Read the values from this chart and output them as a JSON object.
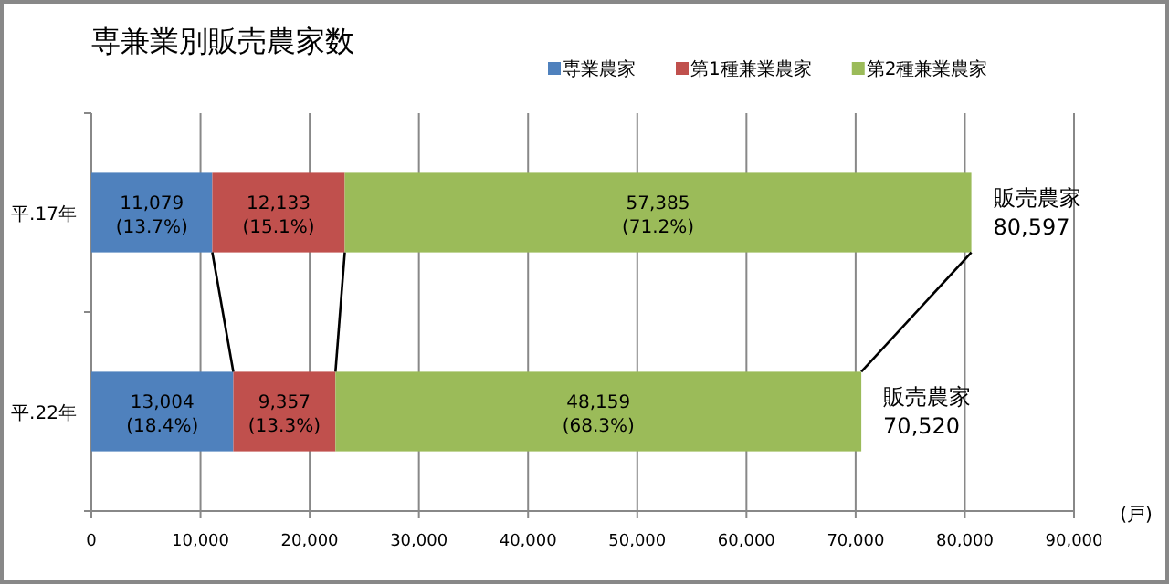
{
  "chart_data": {
    "type": "bar",
    "orientation": "horizontal",
    "stacked": true,
    "title": "専兼業別販売農家数",
    "xlabel": "(戸)",
    "categories": [
      "平.17年",
      "平.22年"
    ],
    "series": [
      {
        "name": "専業農家",
        "color": "#4f81bd",
        "values": [
          11079,
          13004
        ],
        "value_labels": [
          "11,079\n(13.7%)",
          "13,004\n(18.4%)"
        ]
      },
      {
        "name": "第1種兼業農家",
        "color": "#c0504d",
        "values": [
          12133,
          9357
        ],
        "value_labels": [
          "12,133\n(15.1%)",
          "9,357\n(13.3%)"
        ]
      },
      {
        "name": "第2種兼業農家",
        "color": "#9bbb59",
        "values": [
          57385,
          48159
        ],
        "value_labels": [
          "57,385\n(71.2%)",
          "48,159\n(68.3%)"
        ]
      }
    ],
    "totals": [
      "販売農家\n80,597",
      "販売農家\n70,520"
    ],
    "xlim": [
      0,
      90000
    ],
    "xticks": [
      0,
      {
        "value": 10000,
        "label": "10,000"
      },
      {
        "value": 20000,
        "label": "20,000"
      },
      {
        "value": 30000,
        "label": "30,000"
      },
      {
        "value": 40000,
        "label": "40,000"
      },
      {
        "value": 50000,
        "label": "50,000"
      },
      {
        "value": 60000,
        "label": "60,000"
      },
      {
        "value": 70000,
        "label": "70,000"
      },
      {
        "value": 80000,
        "label": "80,000"
      },
      {
        "value": 90000,
        "label": "90,000"
      }
    ],
    "grid": "x",
    "legend": "top right"
  }
}
